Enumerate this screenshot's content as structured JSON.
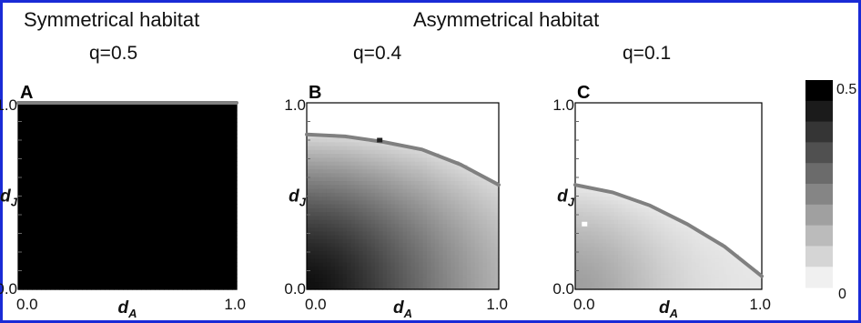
{
  "figure": {
    "titles": {
      "symmetric": "Symmetrical habitat",
      "asymmetric": "Asymmetrical habitat"
    },
    "border_color": "#1a2bd6"
  },
  "chart_data": [
    {
      "type": "heatmap",
      "panel": "A",
      "q_label": "q=0.5",
      "q": 0.5,
      "xlabel": "d_A",
      "ylabel": "d_J",
      "xlim": [
        0,
        1
      ],
      "ylim": [
        0,
        1
      ],
      "x_ticks": [
        "0.0",
        "1.0"
      ],
      "y_ticks": [
        "0.0",
        "1.0"
      ],
      "surface": {
        "kind": "uniform",
        "value": 0.5
      },
      "boundary": {
        "kind": "line",
        "points": [
          [
            0,
            1.0
          ],
          [
            1,
            1.0
          ]
        ],
        "color": "#808080"
      },
      "marker": null
    },
    {
      "type": "heatmap",
      "panel": "B",
      "q_label": "q=0.4",
      "q": 0.4,
      "xlabel": "d_A",
      "ylabel": "d_J",
      "xlim": [
        0,
        1
      ],
      "ylim": [
        0,
        1
      ],
      "x_ticks": [
        "0.0",
        "1.0"
      ],
      "y_ticks": [
        "0.0",
        "1.0"
      ],
      "surface": {
        "kind": "radial",
        "max": 0.47,
        "min": 0.0,
        "near_boundary": 0.05
      },
      "boundary": {
        "kind": "curve",
        "points": [
          [
            0,
            0.83
          ],
          [
            0.2,
            0.82
          ],
          [
            0.4,
            0.79
          ],
          [
            0.6,
            0.75
          ],
          [
            0.8,
            0.67
          ],
          [
            1.0,
            0.56
          ]
        ],
        "color": "#808080"
      },
      "marker": {
        "x": 0.38,
        "y": 0.8,
        "color": "#222222"
      }
    },
    {
      "type": "heatmap",
      "panel": "C",
      "q_label": "q=0.1",
      "q": 0.1,
      "xlabel": "d_A",
      "ylabel": "d_J",
      "xlim": [
        0,
        1
      ],
      "ylim": [
        0,
        1
      ],
      "x_ticks": [
        "0.0",
        "1.0"
      ],
      "y_ticks": [
        "0.0",
        "1.0"
      ],
      "surface": {
        "kind": "radial",
        "max": 0.17,
        "min": 0.0,
        "near_boundary": 0.02
      },
      "boundary": {
        "kind": "curve",
        "points": [
          [
            0,
            0.56
          ],
          [
            0.2,
            0.52
          ],
          [
            0.4,
            0.45
          ],
          [
            0.6,
            0.35
          ],
          [
            0.8,
            0.23
          ],
          [
            1.0,
            0.07
          ]
        ],
        "color": "#808080"
      },
      "marker": {
        "x": 0.05,
        "y": 0.35,
        "color": "#ffffff"
      }
    }
  ],
  "colorbar": {
    "min": 0,
    "max": 0.5,
    "min_label": "0",
    "max_label": "0.5",
    "levels": 10
  }
}
